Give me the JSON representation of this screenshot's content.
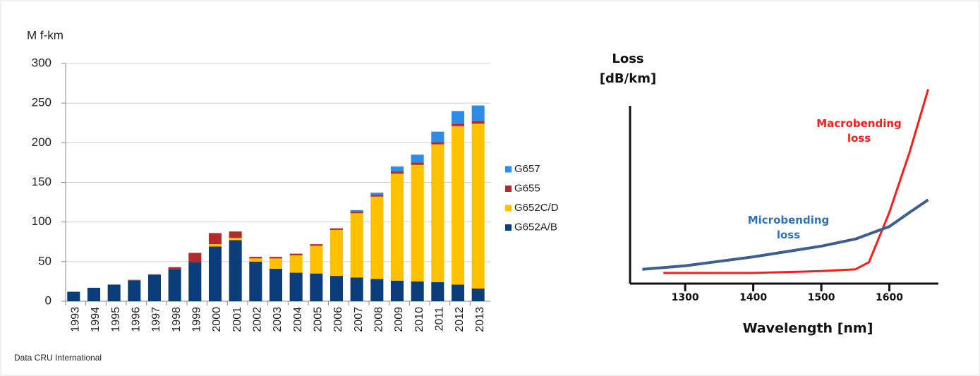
{
  "chart_data": [
    {
      "type": "bar",
      "stacked": true,
      "y_label": "M f-km",
      "source": "Data CRU International",
      "categories": [
        "1993",
        "1994",
        "1995",
        "1996",
        "1997",
        "1998",
        "1999",
        "2000",
        "2001",
        "2002",
        "2003",
        "2004",
        "2005",
        "2006",
        "2007",
        "2008",
        "2009",
        "2010",
        "2011",
        "2012",
        "2013"
      ],
      "series": [
        {
          "name": "G652A/B",
          "color": "#0b3d7a",
          "values": [
            12,
            17,
            21,
            26,
            33,
            40,
            49,
            69,
            77,
            50,
            41,
            36,
            35,
            32,
            30,
            28,
            26,
            25,
            24,
            21,
            16
          ]
        },
        {
          "name": "G652C/D",
          "color": "#ffc000",
          "values": [
            0,
            0,
            0,
            0,
            0,
            0,
            0,
            3,
            3,
            4,
            13,
            22,
            35,
            58,
            81,
            104,
            135,
            147,
            174,
            200,
            208
          ]
        },
        {
          "name": "G655",
          "color": "#b22a2a",
          "values": [
            0,
            0,
            0,
            1,
            1,
            3,
            12,
            14,
            8,
            2,
            2,
            2,
            2,
            2,
            2,
            2,
            3,
            3,
            3,
            3,
            3
          ]
        },
        {
          "name": "G657",
          "color": "#2e8ce6",
          "values": [
            0,
            0,
            0,
            0,
            0,
            0,
            0,
            0,
            0,
            0,
            0,
            0,
            0,
            0,
            2,
            3,
            6,
            10,
            13,
            16,
            20
          ]
        }
      ],
      "ylim": [
        0,
        300
      ],
      "yticks": [
        0,
        50,
        100,
        150,
        200,
        250,
        300
      ],
      "grid": true,
      "legend": "right"
    },
    {
      "type": "line",
      "y_label": "Loss [dB/km]",
      "x_label": "Wavelength [nm]",
      "series": [
        {
          "name": "Macrobending loss",
          "color": "#ff1a1a",
          "text_color": "#ff1a1a",
          "x": [
            1268,
            1400,
            1500,
            1550,
            1570,
            1600,
            1630,
            1657
          ],
          "values": [
            0.6,
            0.6,
            0.7,
            0.8,
            1.2,
            4.0,
            7.4,
            10.9
          ]
        },
        {
          "name": "Microbending loss",
          "color": "#3c5f8f",
          "text_color": "#2e75b6",
          "x": [
            1237,
            1300,
            1400,
            1500,
            1550,
            1600,
            1630,
            1657
          ],
          "values": [
            0.8,
            1.0,
            1.5,
            2.1,
            2.5,
            3.2,
            4.0,
            4.7
          ]
        }
      ],
      "xlim": [
        1219,
        1672
      ],
      "ylim": [
        0,
        11
      ],
      "xticks": [
        1300,
        1400,
        1500,
        1600
      ]
    }
  ]
}
